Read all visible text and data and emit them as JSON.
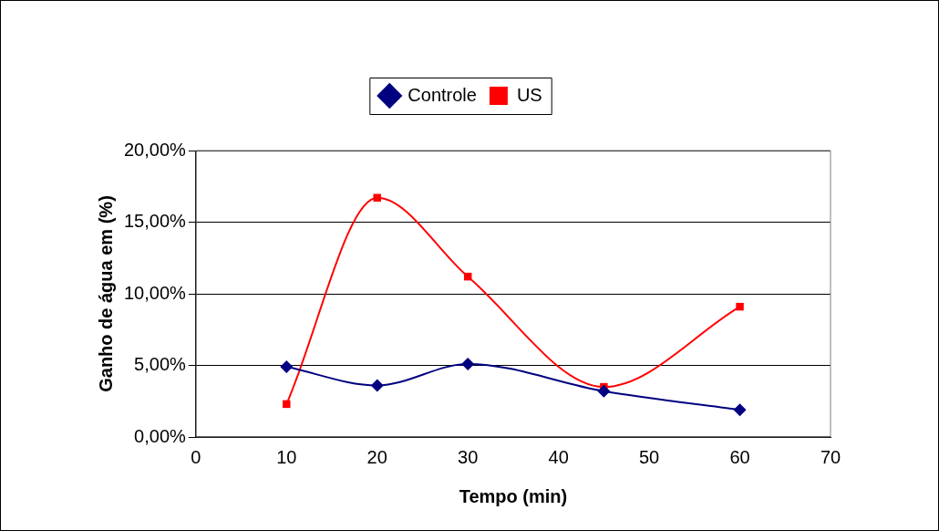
{
  "chart_data": {
    "type": "line",
    "xlabel": "Tempo (min)",
    "ylabel": "Ganho de água em (%)",
    "xlim": [
      0,
      70
    ],
    "xticks": [
      0,
      10,
      20,
      30,
      40,
      50,
      60,
      70
    ],
    "ylim": [
      0,
      20
    ],
    "yticks": [
      {
        "value": 0,
        "label": "0,00%"
      },
      {
        "value": 5,
        "label": "5,00%"
      },
      {
        "value": 10,
        "label": "10,00%"
      },
      {
        "value": 15,
        "label": "15,00%"
      },
      {
        "value": 20,
        "label": "20,00%"
      }
    ],
    "grid": "y",
    "legend": "top",
    "line_style": "solid",
    "series": [
      {
        "name": "Controle",
        "color": "#000080",
        "marker": "diamond",
        "x": [
          10,
          20,
          30,
          45,
          60
        ],
        "values": [
          4.9,
          3.6,
          5.1,
          3.2,
          1.9
        ]
      },
      {
        "name": "US",
        "color": "#ff0000",
        "marker": "square",
        "x": [
          10,
          20,
          30,
          45,
          60
        ],
        "values": [
          2.3,
          16.7,
          11.2,
          3.5,
          9.1
        ]
      }
    ]
  }
}
